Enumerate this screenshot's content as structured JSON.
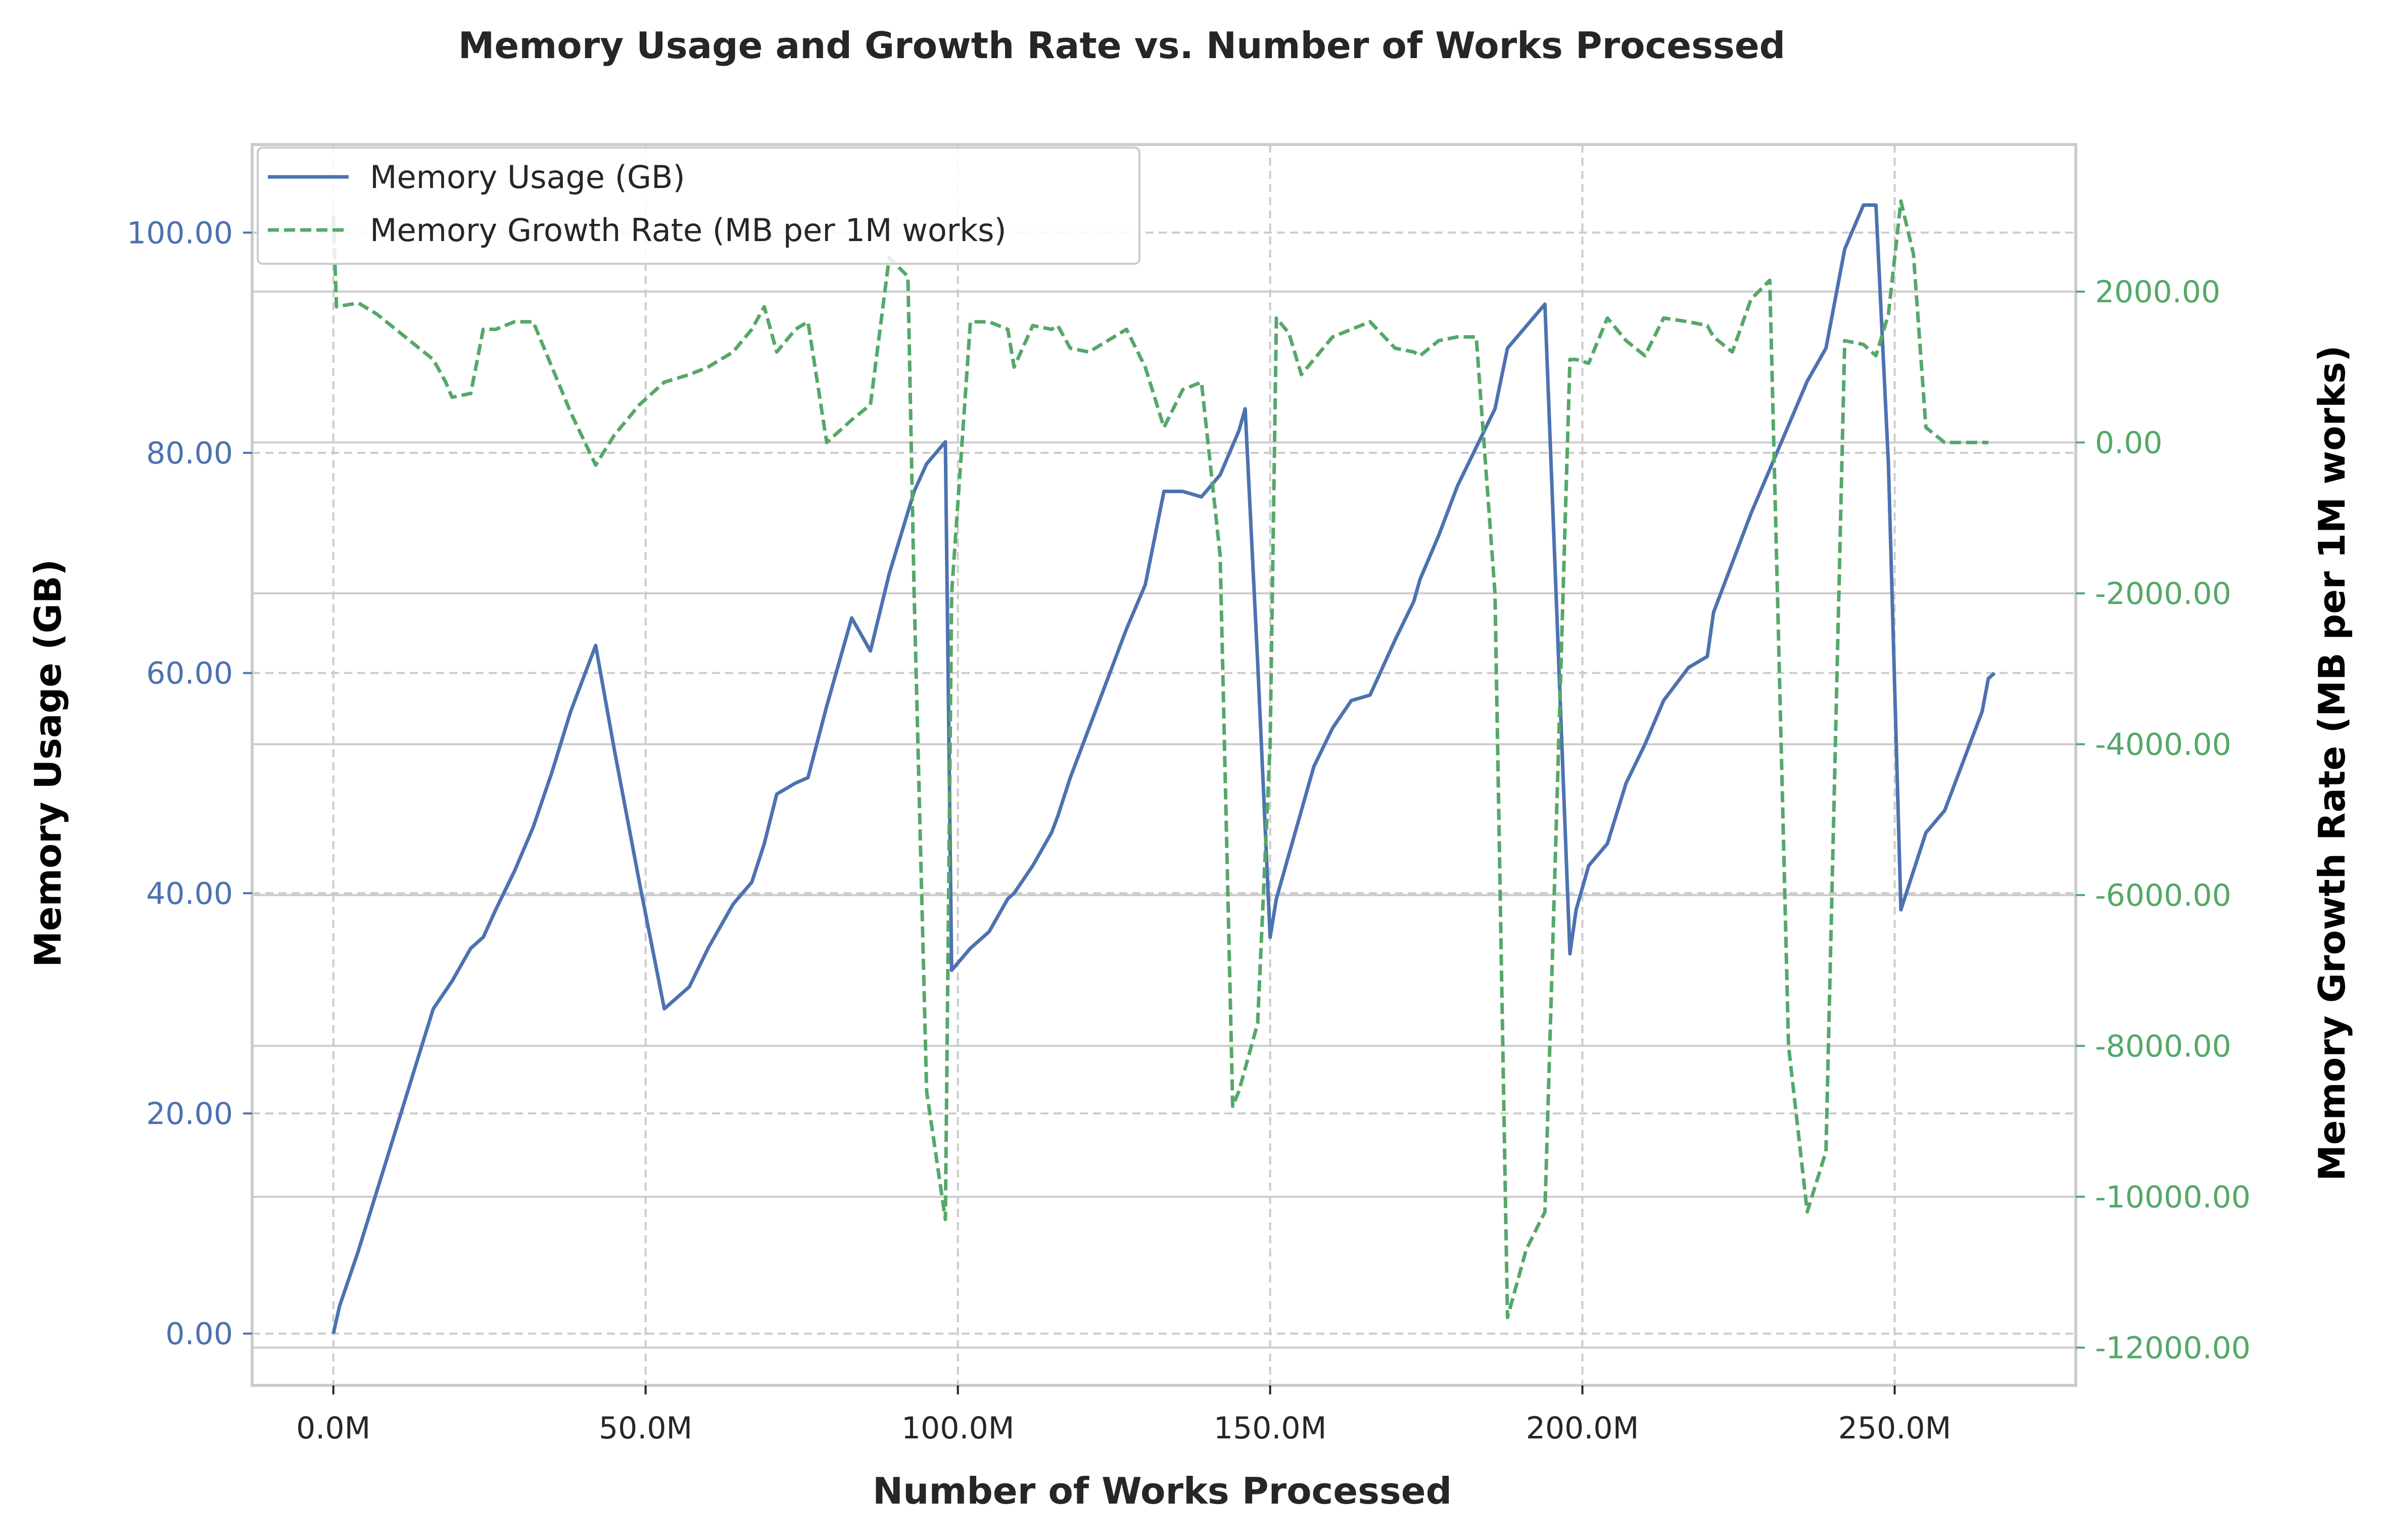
{
  "chart_data": {
    "type": "line",
    "title": "Memory Usage and Growth Rate vs. Number of Works Processed",
    "xlabel": "Number of Works Processed",
    "ylabel_left": "Memory Usage (GB)",
    "ylabel_right": "Memory Growth Rate (MB per 1M works)",
    "xlim": [
      -13,
      279
    ],
    "ylim_left": [
      -4.7,
      108
    ],
    "ylim_right": [
      -12500,
      3950
    ],
    "x_ticks": [
      0,
      50,
      100,
      150,
      200,
      250
    ],
    "x_tick_labels": [
      "0.0M",
      "50.0M",
      "100.0M",
      "150.0M",
      "200.0M",
      "250.0M"
    ],
    "y_left_ticks": [
      0,
      20,
      40,
      60,
      80,
      100
    ],
    "y_left_tick_labels": [
      "0.00",
      "20.00",
      "40.00",
      "60.00",
      "80.00",
      "100.00"
    ],
    "y_right_ticks": [
      -12000,
      -10000,
      -8000,
      -6000,
      -4000,
      -2000,
      0,
      2000
    ],
    "y_right_tick_labels": [
      "-12000.00",
      "-10000.00",
      "-8000.00",
      "-6000.00",
      "-4000.00",
      "-2000.00",
      "0.00",
      "2000.00"
    ],
    "grid": true,
    "legend_position": "top-left",
    "colors": {
      "memory": "#4c72b0",
      "growth": "#55a868",
      "grid": "#cccccc",
      "axes": "#cccccc",
      "text": "#262626"
    },
    "series": [
      {
        "name": "Memory Usage (GB)",
        "axis": "left",
        "style": "solid",
        "x": [
          0,
          1,
          4,
          7,
          10,
          13,
          16,
          19,
          22,
          24,
          26,
          29,
          32,
          35,
          38,
          42,
          45,
          49,
          53,
          57,
          60,
          64,
          67,
          69,
          71,
          74,
          76,
          79,
          83,
          86,
          89,
          93,
          95,
          98,
          99,
          102,
          105,
          108,
          109,
          112,
          115,
          116,
          118,
          121,
          124,
          127,
          130,
          133,
          136,
          139,
          142,
          145,
          146,
          148,
          150,
          151,
          153,
          155,
          157,
          160,
          163,
          166,
          170,
          173,
          174,
          177,
          180,
          183,
          186,
          188,
          191,
          194,
          198,
          199,
          201,
          204,
          207,
          210,
          213,
          217,
          220,
          221,
          224,
          227,
          230,
          233,
          236,
          239,
          242,
          245,
          247,
          249,
          251,
          253,
          255,
          258,
          261,
          264,
          265,
          266
        ],
        "values": [
          0,
          2.5,
          7.5,
          13,
          18.5,
          24,
          29.5,
          32,
          35,
          36,
          38.5,
          42,
          46,
          51,
          56.5,
          62.5,
          53,
          41,
          29.5,
          31.5,
          35,
          39,
          41,
          44.5,
          49,
          50,
          50.5,
          57,
          65,
          62,
          69,
          76.5,
          79,
          81,
          33,
          35,
          36.5,
          39.5,
          40,
          42.5,
          45.5,
          47,
          50.5,
          55,
          59.5,
          64,
          68,
          76.5,
          76.5,
          76,
          78,
          82,
          84,
          61,
          36,
          39.5,
          43.5,
          47.5,
          51.5,
          55,
          57.5,
          58,
          63,
          66.5,
          68.5,
          72.5,
          77,
          80.5,
          84,
          89.5,
          91.5,
          93.5,
          34.5,
          38.5,
          42.5,
          44.5,
          50,
          53.5,
          57.5,
          60.5,
          61.5,
          65.5,
          70,
          74.5,
          78.5,
          82.5,
          86.5,
          89.5,
          98.5,
          102.5,
          102.5,
          79,
          38.5,
          42,
          45.5,
          47.5,
          52,
          56.5,
          59.5,
          60
        ]
      },
      {
        "name": "Memory Growth Rate (MB per 1M works)",
        "axis": "right",
        "style": "dashed",
        "x": [
          0,
          0.5,
          4,
          7,
          10,
          13,
          16,
          18,
          19,
          22,
          24,
          26,
          29,
          32,
          35,
          38,
          42,
          45,
          49,
          53,
          57,
          60,
          64,
          67,
          69,
          71,
          74,
          76,
          79,
          83,
          86,
          89,
          92,
          93,
          95,
          98,
          99,
          102,
          105,
          108,
          109,
          112,
          115,
          116,
          118,
          121,
          124,
          127,
          130,
          133,
          136,
          139,
          142,
          144,
          145,
          148,
          150,
          151,
          153,
          155,
          157,
          160,
          163,
          166,
          170,
          173,
          174,
          177,
          180,
          183,
          186,
          188,
          191,
          194,
          198,
          199,
          201,
          204,
          207,
          210,
          213,
          217,
          220,
          221,
          224,
          227,
          230,
          233,
          236,
          239,
          242,
          245,
          247,
          249,
          251,
          253,
          255,
          258,
          261,
          264,
          265
        ],
        "values": [
          3000,
          1800,
          1850,
          1700,
          1500,
          1300,
          1100,
          800,
          600,
          650,
          1500,
          1500,
          1600,
          1600,
          1000,
          400,
          -300,
          100,
          500,
          800,
          900,
          1000,
          1200,
          1500,
          1800,
          1200,
          1500,
          1600,
          0,
          300,
          500,
          2450,
          2200,
          -2000,
          -8600,
          -10300,
          -2000,
          1600,
          1600,
          1500,
          1000,
          1550,
          1500,
          1550,
          1250,
          1200,
          1350,
          1500,
          1000,
          200,
          700,
          800,
          -1500,
          -8800,
          -8600,
          -7700,
          -4000,
          1650,
          1450,
          900,
          1100,
          1400,
          1500,
          1600,
          1250,
          1200,
          1150,
          1350,
          1400,
          1400,
          -2000,
          -11600,
          -10700,
          -10200,
          1100,
          1100,
          1050,
          1650,
          1350,
          1150,
          1650,
          1600,
          1550,
          1400,
          1200,
          1900,
          2150,
          -8000,
          -10200,
          -9400,
          1350,
          1300,
          1150,
          1700,
          3200,
          2500,
          200,
          0,
          0,
          0,
          0
        ]
      }
    ]
  }
}
